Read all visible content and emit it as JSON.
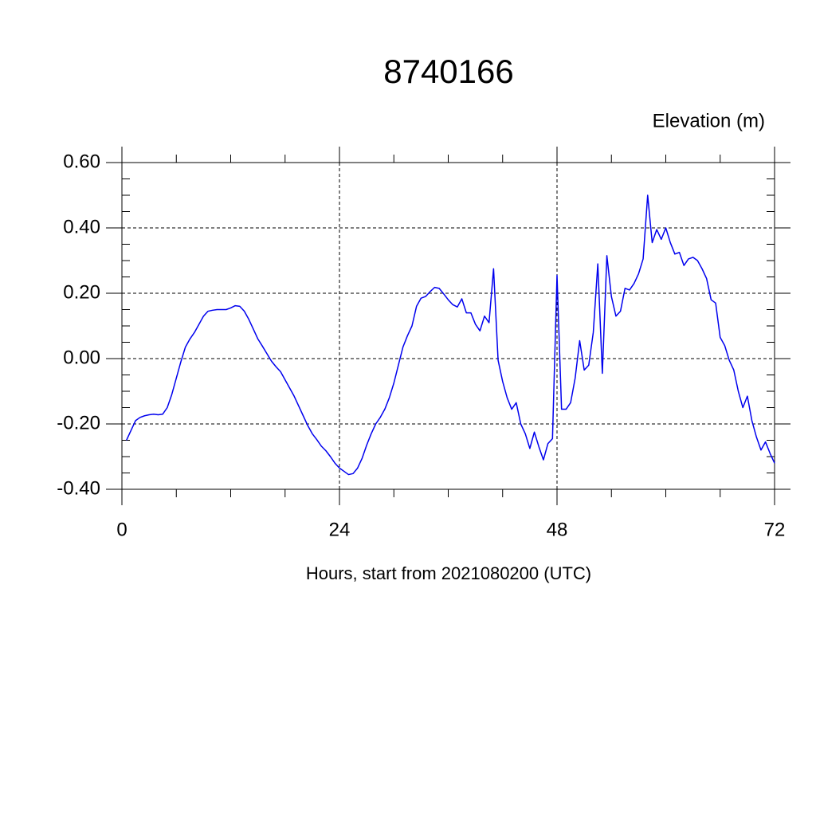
{
  "chart_data": {
    "type": "line",
    "title": "8740166",
    "subtitle": "Elevation (m)",
    "x_label": "Hours, start from 2021080200 (UTC)",
    "xlim": [
      0,
      72
    ],
    "xticks": [
      0,
      24,
      48,
      72
    ],
    "xminorticks": [
      6,
      12,
      18,
      30,
      36,
      42,
      54,
      60,
      66
    ],
    "ylim": [
      -0.4,
      0.6
    ],
    "yticks": [
      {
        "value": -0.4,
        "label": "-0.40"
      },
      {
        "value": -0.2,
        "label": "-0.20"
      },
      {
        "value": 0,
        "label": "0.00"
      },
      {
        "value": 0.2,
        "label": "0.20"
      },
      {
        "value": 0.4,
        "label": "0.40"
      },
      {
        "value": 0.6,
        "label": "0.60"
      }
    ],
    "yminorticks": [
      -0.35,
      -0.3,
      -0.25,
      -0.15,
      -0.1,
      -0.05,
      0.05,
      0.1,
      0.15,
      0.25,
      0.3,
      0.35,
      0.45,
      0.5,
      0.55
    ],
    "grid": true,
    "x": [
      0.5,
      1,
      1.5,
      2,
      2.5,
      3,
      3.5,
      4,
      4.5,
      5,
      5.5,
      6,
      6.5,
      7,
      7.5,
      8,
      8.5,
      9,
      9.5,
      10,
      10.5,
      11,
      11.5,
      12,
      12.5,
      13,
      13.5,
      14,
      14.5,
      15,
      15.5,
      16,
      16.5,
      17,
      17.5,
      18,
      18.5,
      19,
      19.5,
      20,
      20.5,
      21,
      21.5,
      22,
      22.5,
      23,
      23.5,
      24,
      24.5,
      25,
      25.5,
      26,
      26.5,
      27,
      27.5,
      28,
      28.5,
      29,
      29.5,
      30,
      30.5,
      31,
      31.5,
      32,
      32.5,
      33,
      33.5,
      34,
      34.5,
      35,
      35.5,
      36,
      36.5,
      37,
      37.5,
      38,
      38.5,
      39,
      39.5,
      40,
      40.5,
      41,
      41.5,
      42,
      42.5,
      43,
      43.5,
      44,
      44.5,
      45,
      45.5,
      46,
      46.5,
      47,
      47.5,
      48,
      48.5,
      49,
      49.5,
      50,
      50.5,
      51,
      51.5,
      52,
      52.5,
      53,
      53.5,
      54,
      54.5,
      55,
      55.5,
      56,
      56.5,
      57,
      57.5,
      58,
      58.5,
      59,
      59.5,
      60,
      60.5,
      61,
      61.5,
      62,
      62.5,
      63,
      63.5,
      64,
      64.5,
      65,
      65.5,
      66,
      66.5,
      67,
      67.5,
      68,
      68.5,
      69,
      69.5,
      70,
      70.5,
      71,
      71.5,
      72
    ],
    "series": [
      {
        "name": "Elevation",
        "color": "#0000ee",
        "values": [
          -0.25,
          -0.22,
          -0.19,
          -0.18,
          -0.175,
          -0.172,
          -0.17,
          -0.172,
          -0.17,
          -0.15,
          -0.11,
          -0.06,
          -0.01,
          0.035,
          0.06,
          0.08,
          0.105,
          0.13,
          0.145,
          0.148,
          0.15,
          0.15,
          0.15,
          0.155,
          0.162,
          0.16,
          0.145,
          0.12,
          0.09,
          0.06,
          0.038,
          0.015,
          -0.008,
          -0.025,
          -0.04,
          -0.065,
          -0.09,
          -0.115,
          -0.145,
          -0.175,
          -0.205,
          -0.23,
          -0.248,
          -0.268,
          -0.282,
          -0.3,
          -0.32,
          -0.335,
          -0.345,
          -0.355,
          -0.352,
          -0.335,
          -0.305,
          -0.265,
          -0.23,
          -0.2,
          -0.18,
          -0.155,
          -0.12,
          -0.075,
          -0.02,
          0.035,
          0.07,
          0.1,
          0.16,
          0.185,
          0.19,
          0.205,
          0.218,
          0.215,
          0.198,
          0.18,
          0.165,
          0.158,
          0.183,
          0.14,
          0.14,
          0.105,
          0.085,
          0.13,
          0.11,
          0.275,
          -0.005,
          -0.07,
          -0.12,
          -0.155,
          -0.135,
          -0.2,
          -0.23,
          -0.275,
          -0.225,
          -0.27,
          -0.31,
          -0.26,
          -0.245,
          0.255,
          -0.155,
          -0.155,
          -0.135,
          -0.06,
          0.055,
          -0.035,
          -0.02,
          0.08,
          0.29,
          -0.045,
          0.315,
          0.19,
          0.13,
          0.145,
          0.215,
          0.21,
          0.23,
          0.26,
          0.305,
          0.5,
          0.355,
          0.395,
          0.365,
          0.4,
          0.355,
          0.32,
          0.325,
          0.285,
          0.305,
          0.31,
          0.3,
          0.275,
          0.245,
          0.18,
          0.17,
          0.065,
          0.04,
          -0.005,
          -0.035,
          -0.1,
          -0.15,
          -0.115,
          -0.19,
          -0.24,
          -0.28,
          -0.255,
          -0.29,
          -0.32
        ]
      }
    ]
  }
}
